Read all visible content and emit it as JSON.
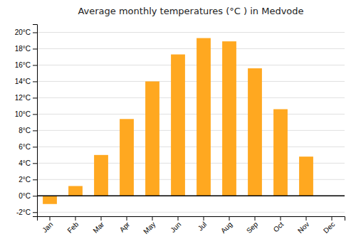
{
  "chart_data": {
    "type": "bar",
    "title": "Average monthly temperatures (°C ) in Medvode",
    "categories": [
      "Jan",
      "Feb",
      "Mar",
      "Apr",
      "May",
      "Jun",
      "Jul",
      "Aug",
      "Sep",
      "Oct",
      "Nov",
      "Dec"
    ],
    "values": [
      -1.0,
      1.2,
      5.0,
      9.4,
      14.0,
      17.3,
      19.3,
      18.9,
      15.6,
      10.6,
      4.8,
      0.0
    ],
    "color": "#FFA820",
    "ylim": [
      -2.5,
      21.0
    ],
    "yticks": [
      {
        "value": -2,
        "label": "-2°C"
      },
      {
        "value": 0,
        "label": "0°C"
      },
      {
        "value": 2,
        "label": "2°C"
      },
      {
        "value": 4,
        "label": "4°C"
      },
      {
        "value": 6,
        "label": "6°C"
      },
      {
        "value": 8,
        "label": "8°C"
      },
      {
        "value": 10,
        "label": "10°C"
      },
      {
        "value": 12,
        "label": "12°C"
      },
      {
        "value": 14,
        "label": "14°C"
      },
      {
        "value": 16,
        "label": "16°C"
      },
      {
        "value": 18,
        "label": "18°C"
      },
      {
        "value": 20,
        "label": "20°C"
      }
    ],
    "grid": true
  }
}
